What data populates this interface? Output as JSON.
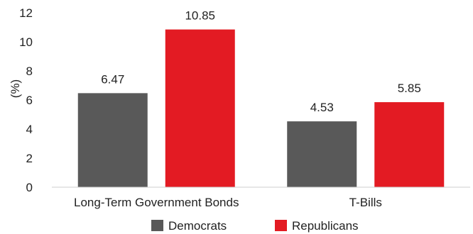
{
  "chart_data": {
    "type": "bar",
    "title": "",
    "xlabel": "",
    "ylabel": "(%)",
    "ylim": [
      0,
      12
    ],
    "yticks": [
      0,
      2,
      4,
      6,
      8,
      10,
      12
    ],
    "grid": false,
    "legend_position": "bottom",
    "categories": [
      "Long-Term Government Bonds",
      "T-Bills"
    ],
    "series": [
      {
        "name": "Democrats",
        "color": "#595959",
        "values": [
          6.47,
          4.53
        ],
        "labels": [
          "6.47",
          "4.53"
        ]
      },
      {
        "name": "Republicans",
        "color": "#e31b23",
        "values": [
          10.85,
          5.85
        ],
        "labels": [
          "10.85",
          "5.85"
        ]
      }
    ]
  }
}
